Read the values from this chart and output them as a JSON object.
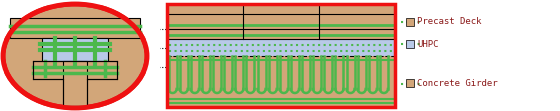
{
  "tan_color": "#D2A679",
  "blue_color": "#B8C9E8",
  "green_color": "#4CB84C",
  "white_color": "#FFFFFF",
  "red_color": "#EE1111",
  "black_color": "#000000",
  "legend_labels": [
    "Precast Deck",
    "UHPC",
    "Concrete Girder"
  ],
  "legend_colors": [
    "#D2A679",
    "#B8C9E8",
    "#D2A679"
  ],
  "legend_dash_color": "#4CB84C",
  "text_color": "#8B1A1A",
  "fig_bg": "#FFFFFF"
}
